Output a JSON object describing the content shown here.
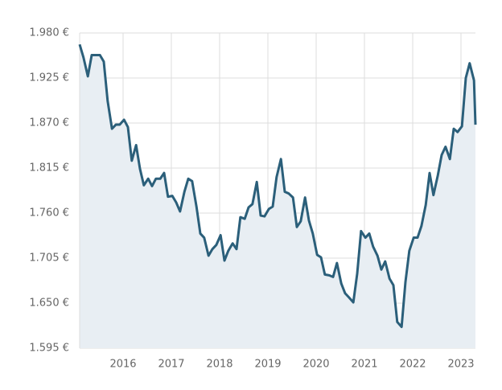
{
  "chart_data": {
    "type": "area",
    "x": [
      2015.1,
      2015.18,
      2015.27,
      2015.35,
      2015.43,
      2015.52,
      2015.6,
      2015.68,
      2015.77,
      2015.85,
      2015.93,
      2016.02,
      2016.1,
      2016.18,
      2016.27,
      2016.35,
      2016.43,
      2016.52,
      2016.6,
      2016.68,
      2016.77,
      2016.85,
      2016.93,
      2017.02,
      2017.1,
      2017.18,
      2017.27,
      2017.35,
      2017.43,
      2017.52,
      2017.6,
      2017.68,
      2017.77,
      2017.85,
      2017.93,
      2018.02,
      2018.1,
      2018.18,
      2018.27,
      2018.35,
      2018.43,
      2018.52,
      2018.6,
      2018.68,
      2018.77,
      2018.85,
      2018.93,
      2019.02,
      2019.1,
      2019.18,
      2019.27,
      2019.35,
      2019.43,
      2019.52,
      2019.6,
      2019.68,
      2019.77,
      2019.85,
      2019.93,
      2020.02,
      2020.1,
      2020.18,
      2020.27,
      2020.35,
      2020.43,
      2020.52,
      2020.6,
      2020.68,
      2020.77,
      2020.85,
      2020.93,
      2021.02,
      2021.1,
      2021.18,
      2021.27,
      2021.35,
      2021.43,
      2021.52,
      2021.6,
      2021.68,
      2021.77,
      2021.85,
      2021.93,
      2022.02,
      2022.1,
      2022.18,
      2022.27,
      2022.35,
      2022.43,
      2022.52,
      2022.6,
      2022.68,
      2022.77,
      2022.85,
      2022.93,
      2023.02,
      2023.1,
      2023.18,
      2023.27,
      2023.3
    ],
    "values": [
      1966,
      1950,
      1927,
      1953,
      1953,
      1953,
      1945,
      1897,
      1863,
      1868,
      1868,
      1874,
      1865,
      1824,
      1843,
      1814,
      1794,
      1802,
      1793,
      1802,
      1802,
      1809,
      1780,
      1781,
      1773,
      1762,
      1786,
      1802,
      1799,
      1768,
      1735,
      1730,
      1708,
      1716,
      1721,
      1733,
      1702,
      1714,
      1723,
      1716,
      1755,
      1753,
      1767,
      1771,
      1798,
      1757,
      1756,
      1765,
      1768,
      1804,
      1826,
      1786,
      1784,
      1779,
      1743,
      1750,
      1779,
      1751,
      1735,
      1709,
      1706,
      1685,
      1684,
      1682,
      1699,
      1674,
      1662,
      1657,
      1651,
      1686,
      1738,
      1730,
      1735,
      1719,
      1708,
      1691,
      1701,
      1680,
      1672,
      1627,
      1621,
      1676,
      1714,
      1730,
      1730,
      1744,
      1770,
      1809,
      1782,
      1806,
      1831,
      1841,
      1826,
      1863,
      1859,
      1866,
      1925,
      1943,
      1922,
      1868
    ],
    "color": "#2b5f7a",
    "fill": "#e8eef3",
    "xlim": [
      2015.1,
      2023.3
    ],
    "xticks": [
      2016,
      2017,
      2018,
      2019,
      2020,
      2021,
      2022,
      2023
    ],
    "ylim": [
      1595,
      1980
    ],
    "yticks": [
      {
        "value": 1980,
        "label": "1.980 €"
      },
      {
        "value": 1925,
        "label": "1.925 €"
      },
      {
        "value": 1870,
        "label": "1.870 €"
      },
      {
        "value": 1815,
        "label": "1.815 €"
      },
      {
        "value": 1760,
        "label": "1.760 €"
      },
      {
        "value": 1705,
        "label": "1.705 €"
      },
      {
        "value": 1650,
        "label": "1.650 €"
      },
      {
        "value": 1595,
        "label": "1.595 €"
      }
    ],
    "grid": true
  }
}
